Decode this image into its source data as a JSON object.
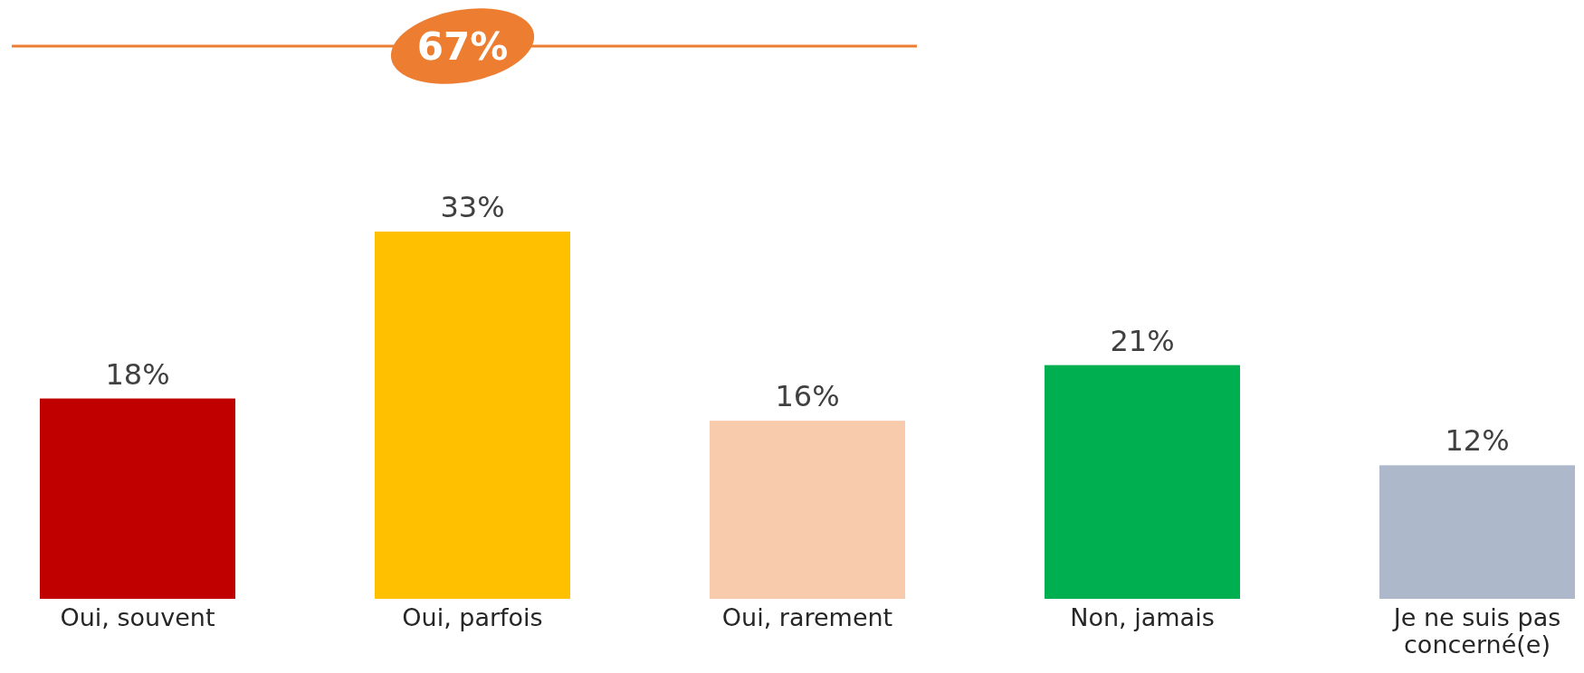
{
  "chart_data": {
    "type": "bar",
    "categories": [
      "Oui, souvent",
      "Oui, parfois",
      "Oui, rarement",
      "Non, jamais",
      "Je ne suis pas concerné(e)"
    ],
    "values": [
      18,
      33,
      16,
      21,
      12
    ],
    "colors": [
      "#c00000",
      "#ffc000",
      "#f8cbad",
      "#00b050",
      "#adb9ca"
    ],
    "value_labels": [
      "18%",
      "33%",
      "16%",
      "21%",
      "12%"
    ],
    "annotations": [
      "67%"
    ]
  }
}
